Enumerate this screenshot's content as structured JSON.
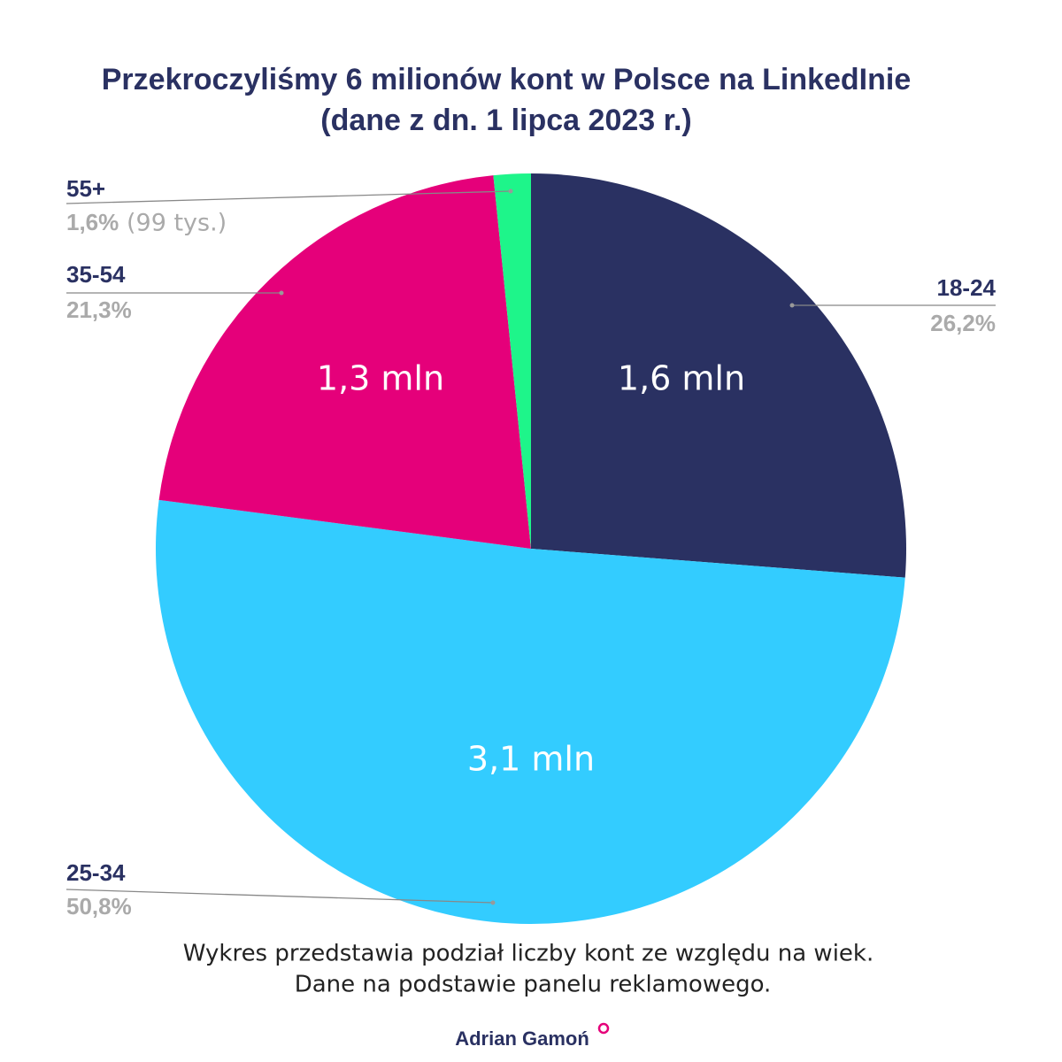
{
  "chart_data": {
    "type": "pie",
    "title": [
      "Przekroczyliśmy 6 milionów kont w Polsce na LinkedInie",
      "(dane z dn. 1 lipca 2023 r.)"
    ],
    "categories": [
      "18-24",
      "25-34",
      "35-54",
      "55+"
    ],
    "values": [
      26.2,
      50.8,
      21.3,
      1.6
    ],
    "value_labels": [
      "26,2%",
      "50,8%",
      "21,3%",
      "1,6%"
    ],
    "count_labels": [
      "1,6 mln",
      "3,1 mln",
      "1,3 mln",
      "(99 tys.)"
    ],
    "colors": [
      "#2a3162",
      "#33ccff",
      "#e5007a",
      "#1ef58a"
    ],
    "footnote": [
      "Wykres przedstawia podział liczby kont ze względu na wiek.",
      "Dane na podstawie panelu reklamowego."
    ],
    "author": "Adrian Gamoń"
  }
}
